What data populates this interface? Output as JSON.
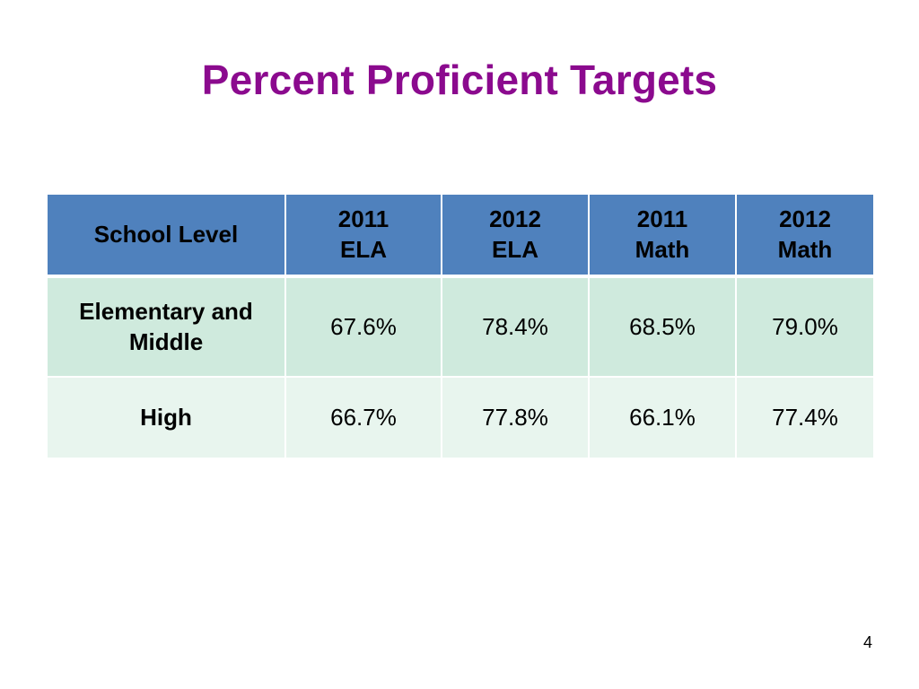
{
  "slide": {
    "title": "Percent Proficient Targets",
    "page_number": "4"
  },
  "table": {
    "header": {
      "school_level": "School Level",
      "col1": {
        "line1": "2011",
        "line2": "ELA"
      },
      "col2": {
        "line1": "2012",
        "line2": "ELA"
      },
      "col3": {
        "line1": "2011",
        "line2": "Math"
      },
      "col4": {
        "line1": "2012",
        "line2": "Math"
      }
    },
    "rows": [
      {
        "label_line1": "Elementary and",
        "label_line2": "Middle",
        "values": [
          "67.6%",
          "78.4%",
          "68.5%",
          "79.0%"
        ]
      },
      {
        "label_line1": "High",
        "label_line2": "",
        "values": [
          "66.7%",
          "77.8%",
          "66.1%",
          "77.4%"
        ]
      }
    ]
  },
  "colors": {
    "title": "#8b0a8e",
    "header_fill": "#4f81bd",
    "row1_fill": "#cfeadd",
    "row2_fill": "#e8f5ee"
  }
}
